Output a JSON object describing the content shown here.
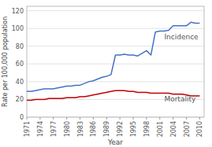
{
  "chart_data": {
    "type": "line",
    "x": [
      1971,
      1972,
      1973,
      1974,
      1975,
      1976,
      1977,
      1978,
      1979,
      1980,
      1981,
      1982,
      1983,
      1984,
      1985,
      1986,
      1987,
      1988,
      1989,
      1990,
      1991,
      1992,
      1993,
      1994,
      1995,
      1996,
      1997,
      1998,
      1999,
      2000,
      2001,
      2002,
      2003,
      2004,
      2005,
      2006,
      2007,
      2008,
      2009,
      2010
    ],
    "series": [
      {
        "color": "#4472C4",
        "values": [
          29,
          29,
          30,
          31,
          32,
          32,
          32,
          33,
          34,
          35,
          35,
          36,
          36,
          38,
          40,
          41,
          43,
          45,
          46,
          48,
          70,
          70,
          71,
          70,
          70,
          69,
          72,
          75,
          70,
          96,
          97,
          97,
          98,
          103,
          103,
          103,
          103,
          107,
          106,
          106
        ]
      },
      {
        "color": "#C00000",
        "values": [
          19,
          19,
          20,
          20,
          20,
          21,
          21,
          21,
          21,
          22,
          22,
          22,
          23,
          23,
          24,
          25,
          26,
          27,
          28,
          29,
          30,
          30,
          30,
          29,
          29,
          28,
          28,
          28,
          27,
          27,
          27,
          27,
          27,
          26,
          26,
          26,
          25,
          24,
          24,
          24
        ]
      }
    ],
    "xlabel": "Year",
    "ylabel": "Rate per 100,000 population",
    "xlim": [
      1971,
      2011
    ],
    "xticks": [
      1971,
      1974,
      1977,
      1980,
      1983,
      1986,
      1989,
      1992,
      1995,
      1998,
      2001,
      2004,
      2007,
      2010
    ],
    "ylim": [
      0,
      125
    ],
    "yticks": [
      0,
      20,
      40,
      60,
      80,
      100,
      120
    ],
    "grid": true,
    "annotations": [
      {
        "text": "Incidence",
        "x": 2002,
        "y": 88
      },
      {
        "text": "Mortality",
        "x": 2002,
        "y": 18
      }
    ]
  }
}
